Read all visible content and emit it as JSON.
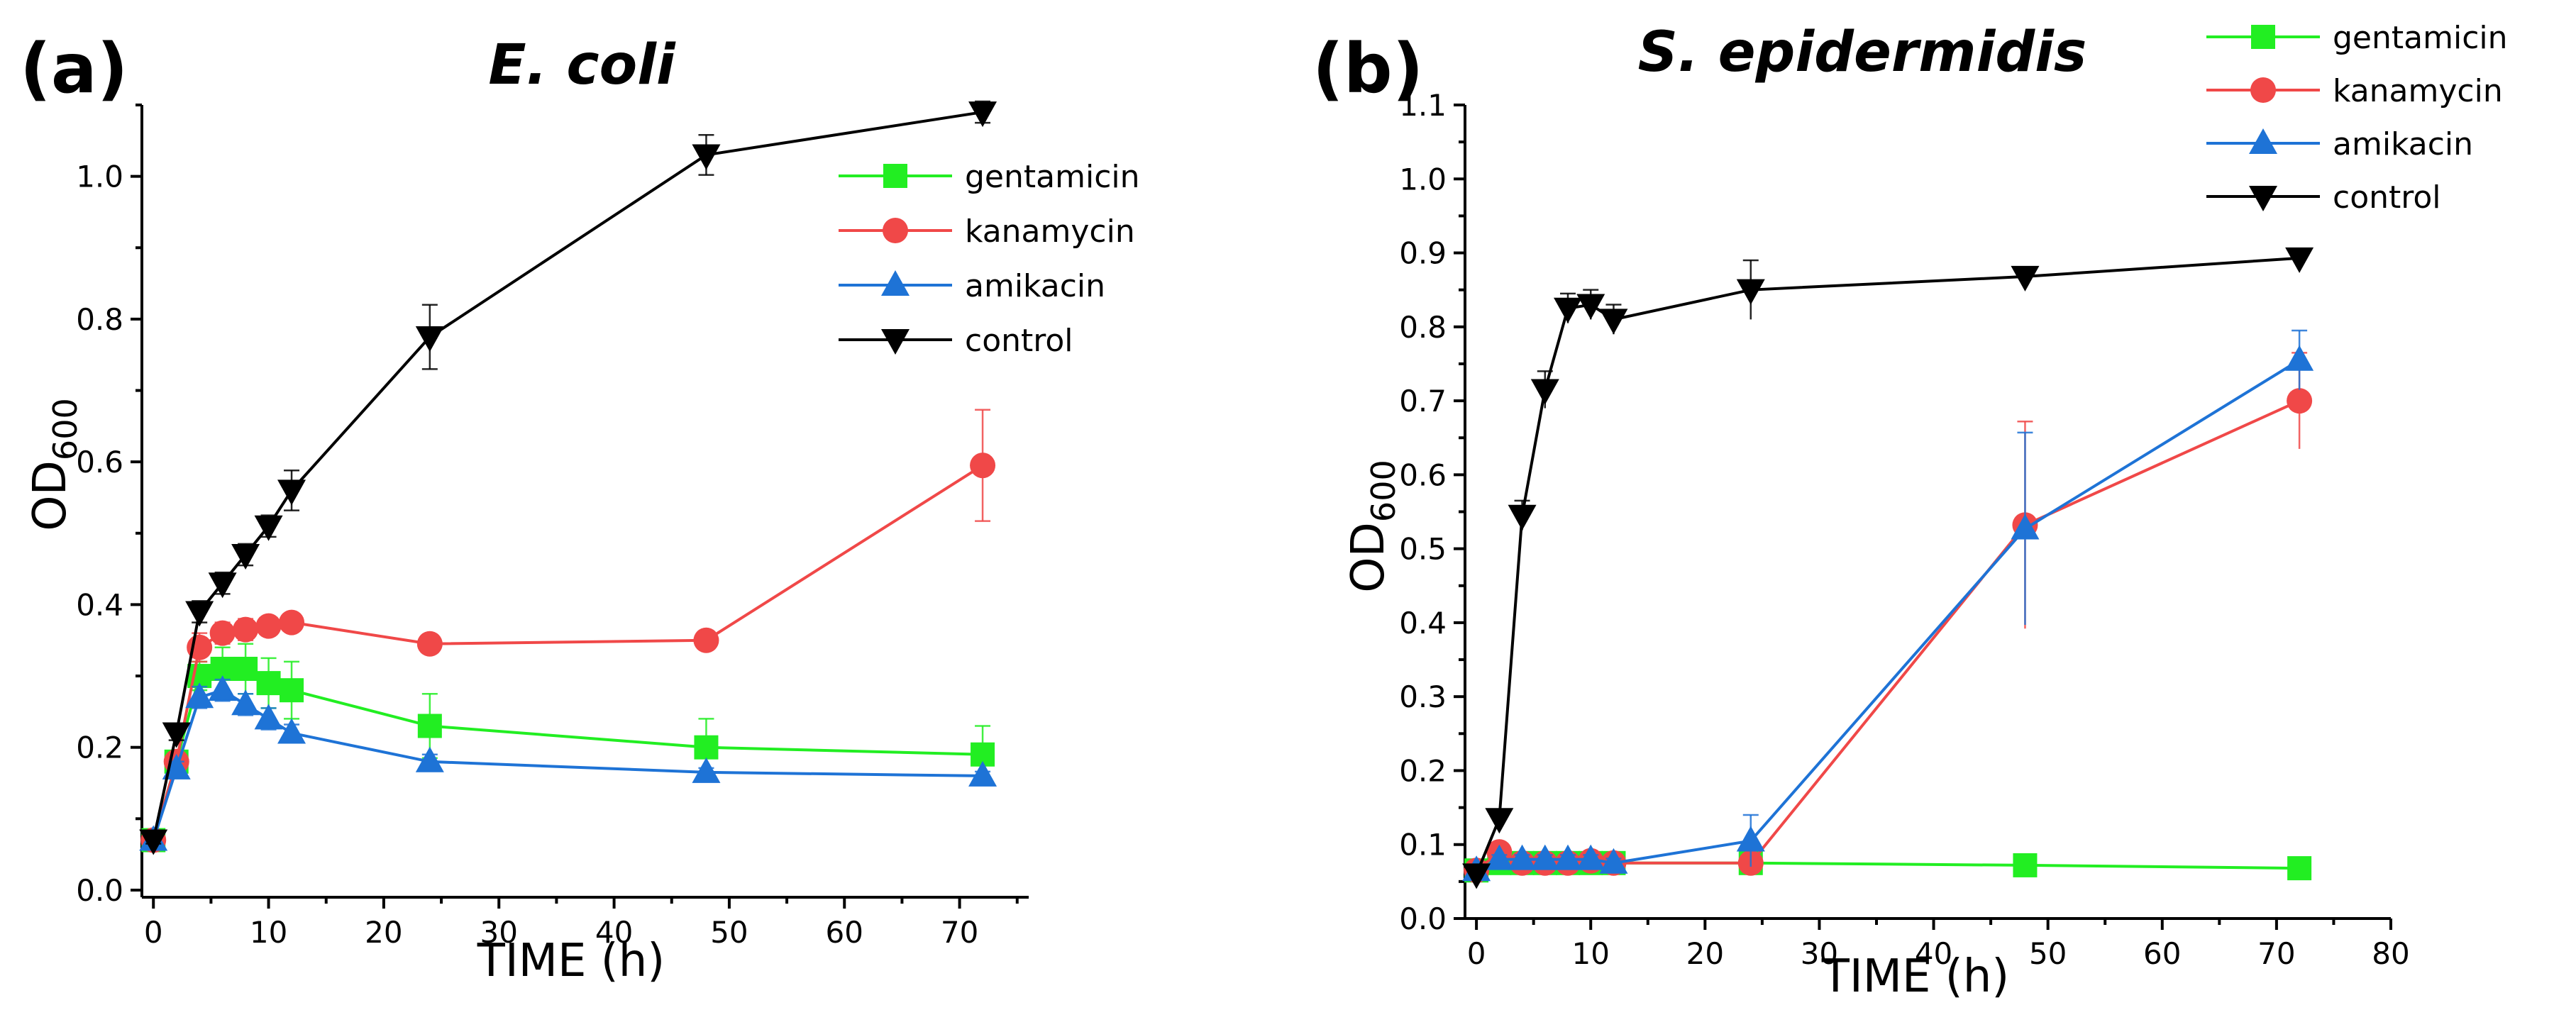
{
  "chart_data": [
    {
      "type": "line",
      "panel_label": "(a)",
      "title": "E. coli",
      "xlabel": "TIME (h)",
      "ylabel": "OD",
      "ylabel_sub": "600",
      "xlim": [
        -1,
        76
      ],
      "ylim": [
        -0.01,
        1.1
      ],
      "xticks": [
        "0",
        "10",
        "20",
        "30",
        "40",
        "50",
        "60",
        "70"
      ],
      "xtick_values": [
        0,
        10,
        20,
        30,
        40,
        50,
        60,
        70
      ],
      "yticks": [
        "0.0",
        "0.2",
        "0.4",
        "0.6",
        "0.8",
        "1.0"
      ],
      "ytick_values": [
        0.0,
        0.2,
        0.4,
        0.6,
        0.8,
        1.0
      ],
      "legend_position": "top-right",
      "series": [
        {
          "name": "gentamicin",
          "color": "#22ee22",
          "marker": "square",
          "x": [
            0,
            2,
            4,
            6,
            8,
            10,
            12,
            24,
            48,
            72
          ],
          "values": [
            0.07,
            0.18,
            0.3,
            0.31,
            0.31,
            0.29,
            0.28,
            0.23,
            0.2,
            0.19
          ],
          "errors": [
            0.005,
            0.01,
            0.02,
            0.03,
            0.035,
            0.035,
            0.04,
            0.045,
            0.04,
            0.04
          ]
        },
        {
          "name": "kanamycin",
          "color": "#f04848",
          "marker": "circle",
          "x": [
            0,
            2,
            4,
            6,
            8,
            10,
            12,
            24,
            48,
            72
          ],
          "values": [
            0.07,
            0.18,
            0.34,
            0.36,
            0.365,
            0.37,
            0.375,
            0.345,
            0.35,
            0.595
          ],
          "errors": [
            0.005,
            0.01,
            0.02,
            0.015,
            0.015,
            0.01,
            0.01,
            0.01,
            0.006,
            0.078
          ]
        },
        {
          "name": "amikacin",
          "color": "#1e73d6",
          "marker": "triangle-up",
          "x": [
            0,
            2,
            4,
            6,
            8,
            10,
            12,
            24,
            48,
            72
          ],
          "values": [
            0.07,
            0.17,
            0.27,
            0.28,
            0.26,
            0.24,
            0.22,
            0.18,
            0.165,
            0.16
          ],
          "errors": [
            0.005,
            0.01,
            0.015,
            0.015,
            0.015,
            0.015,
            0.012,
            0.01,
            0.006,
            0.006
          ]
        },
        {
          "name": "control",
          "color": "#000000",
          "marker": "triangle-down",
          "x": [
            0,
            2,
            4,
            6,
            8,
            10,
            12,
            24,
            48,
            72
          ],
          "values": [
            0.07,
            0.22,
            0.39,
            0.43,
            0.47,
            0.51,
            0.56,
            0.775,
            1.03,
            1.09
          ],
          "errors": [
            0.005,
            0.01,
            0.015,
            0.015,
            0.015,
            0.015,
            0.028,
            0.045,
            0.028,
            0.015
          ]
        }
      ]
    },
    {
      "type": "line",
      "panel_label": "(b)",
      "title": "S. epidermidis",
      "xlabel": "TIME (h)",
      "ylabel": "OD",
      "ylabel_sub": "600",
      "xlim": [
        -1,
        80
      ],
      "ylim": [
        0.0,
        1.1
      ],
      "xticks": [
        "0",
        "10",
        "20",
        "30",
        "40",
        "50",
        "60",
        "70",
        "80"
      ],
      "xtick_values": [
        0,
        10,
        20,
        30,
        40,
        50,
        60,
        70,
        80
      ],
      "yticks": [
        "0.0",
        "0.1",
        "0.2",
        "0.3",
        "0.4",
        "0.5",
        "0.6",
        "0.7",
        "0.8",
        "0.9",
        "1.0",
        "1.1"
      ],
      "ytick_values": [
        0.0,
        0.1,
        0.2,
        0.3,
        0.4,
        0.5,
        0.6,
        0.7,
        0.8,
        0.9,
        1.0,
        1.1
      ],
      "legend_position": "top-right",
      "series": [
        {
          "name": "gentamicin",
          "color": "#22ee22",
          "marker": "square",
          "x": [
            0,
            2,
            4,
            6,
            8,
            10,
            12,
            24,
            48,
            72
          ],
          "values": [
            0.065,
            0.075,
            0.075,
            0.075,
            0.075,
            0.075,
            0.075,
            0.075,
            0.072,
            0.068
          ],
          "errors": [
            0.004,
            0.004,
            0.004,
            0.004,
            0.004,
            0.004,
            0.004,
            0.004,
            0.004,
            0.004
          ]
        },
        {
          "name": "kanamycin",
          "color": "#f04848",
          "marker": "circle",
          "x": [
            0,
            2,
            4,
            6,
            8,
            10,
            12,
            24,
            48,
            72
          ],
          "values": [
            0.065,
            0.09,
            0.075,
            0.075,
            0.075,
            0.078,
            0.075,
            0.075,
            0.532,
            0.7
          ],
          "errors": [
            0.004,
            0.005,
            0.004,
            0.004,
            0.004,
            0.004,
            0.004,
            0.004,
            0.14,
            0.065
          ]
        },
        {
          "name": "amikacin",
          "color": "#1e73d6",
          "marker": "triangle-up",
          "x": [
            0,
            2,
            4,
            6,
            8,
            10,
            12,
            24,
            48,
            72
          ],
          "values": [
            0.065,
            0.08,
            0.08,
            0.08,
            0.08,
            0.08,
            0.075,
            0.105,
            0.527,
            0.755
          ],
          "errors": [
            0.004,
            0.006,
            0.006,
            0.006,
            0.006,
            0.006,
            0.006,
            0.035,
            0.13,
            0.04
          ]
        },
        {
          "name": "control",
          "color": "#000000",
          "marker": "triangle-down",
          "x": [
            0,
            2,
            4,
            6,
            8,
            10,
            12,
            24,
            48,
            72
          ],
          "values": [
            0.06,
            0.135,
            0.545,
            0.715,
            0.825,
            0.83,
            0.81,
            0.85,
            0.868,
            0.893
          ],
          "errors": [
            0.004,
            0.006,
            0.02,
            0.025,
            0.02,
            0.02,
            0.02,
            0.04,
            0.013,
            0.01
          ]
        }
      ]
    }
  ]
}
